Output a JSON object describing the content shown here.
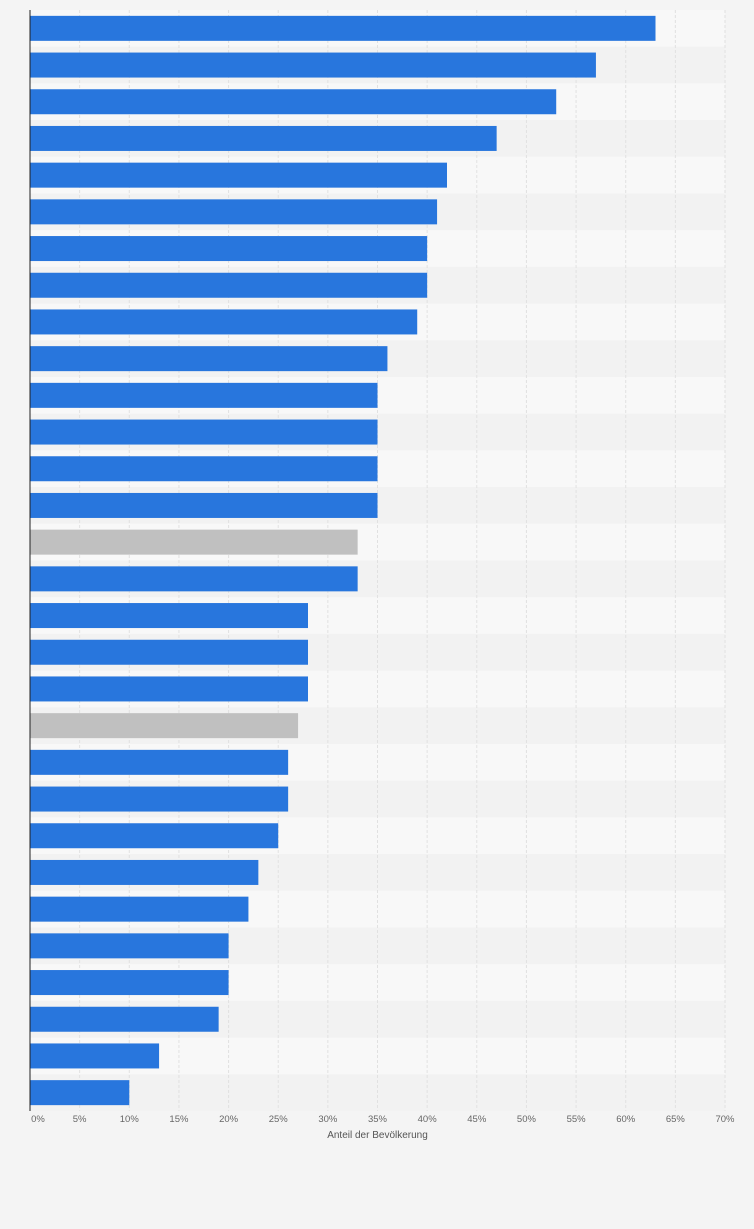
{
  "chart_data": {
    "type": "bar",
    "orientation": "horizontal",
    "title": "",
    "xlabel": "Anteil der Bevölkerung",
    "ylabel": "",
    "xlim": [
      0,
      70
    ],
    "tick_step": 5,
    "tick_suffix": "%",
    "grid": true,
    "category_labels_shown": false,
    "values": [
      63,
      57,
      53,
      47,
      42,
      41,
      40,
      40,
      39,
      36,
      35,
      35,
      35,
      35,
      33,
      33,
      28,
      28,
      28,
      27,
      26,
      26,
      25,
      23,
      22,
      20,
      20,
      19,
      13,
      10
    ],
    "highlighted_indices": [
      14,
      19
    ]
  },
  "colors": {
    "bar": "#2876dd",
    "bar_highlight": "#c0c0c0",
    "page_background": "#f4f4f4",
    "stripe_light": "#f8f8f8",
    "stripe_dark": "#f2f2f2",
    "grid": "#e1e1e1",
    "axis": "#1f1f1f"
  }
}
